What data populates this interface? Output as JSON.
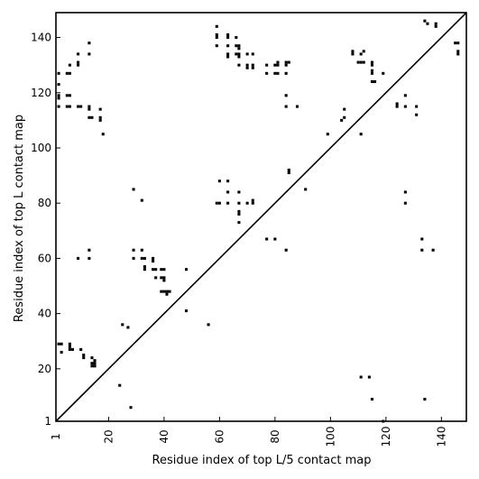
{
  "chart_data": {
    "type": "scatter",
    "xlabel": "Residue index of top L/5 contact map",
    "ylabel": "Residue index of top L contact map",
    "xlim": [
      1,
      149
    ],
    "ylim": [
      1,
      149
    ],
    "x_ticks": [
      1,
      20,
      40,
      60,
      80,
      100,
      120,
      140
    ],
    "y_ticks": [
      1,
      20,
      40,
      60,
      80,
      100,
      120,
      140
    ],
    "diagonal": true,
    "grid": false,
    "marker": "filled square",
    "marker_color": "#000000",
    "series": [
      {
        "points": [
          [
            2,
            127
          ],
          [
            2,
            123
          ],
          [
            2,
            119
          ],
          [
            2,
            118
          ],
          [
            2,
            115
          ],
          [
            5,
            127
          ],
          [
            5,
            119
          ],
          [
            6,
            130
          ],
          [
            6,
            127
          ],
          [
            6,
            119
          ],
          [
            5,
            115
          ],
          [
            6,
            115
          ],
          [
            9,
            134
          ],
          [
            9,
            131
          ],
          [
            9,
            130
          ],
          [
            9,
            115
          ],
          [
            10,
            115
          ],
          [
            13,
            138
          ],
          [
            13,
            134
          ],
          [
            13,
            115
          ],
          [
            13,
            114
          ],
          [
            13,
            111
          ],
          [
            14,
            111
          ],
          [
            17,
            114
          ],
          [
            17,
            111
          ],
          [
            17,
            110
          ],
          [
            18,
            105
          ],
          [
            2,
            29
          ],
          [
            3,
            29
          ],
          [
            3,
            26
          ],
          [
            6,
            29
          ],
          [
            6,
            28
          ],
          [
            6,
            27
          ],
          [
            7,
            27
          ],
          [
            10,
            27
          ],
          [
            11,
            25
          ],
          [
            11,
            24
          ],
          [
            14,
            24
          ],
          [
            14,
            22
          ],
          [
            14,
            21
          ],
          [
            15,
            23
          ],
          [
            15,
            22
          ],
          [
            15,
            21
          ],
          [
            9,
            60
          ],
          [
            13,
            63
          ],
          [
            13,
            60
          ],
          [
            24,
            14
          ],
          [
            25,
            36
          ],
          [
            27,
            35
          ],
          [
            28,
            6
          ],
          [
            29,
            85
          ],
          [
            29,
            63
          ],
          [
            29,
            60
          ],
          [
            32,
            81
          ],
          [
            32,
            63
          ],
          [
            32,
            60
          ],
          [
            33,
            60
          ],
          [
            33,
            57
          ],
          [
            33,
            56
          ],
          [
            36,
            60
          ],
          [
            36,
            59
          ],
          [
            36,
            56
          ],
          [
            37,
            56
          ],
          [
            37,
            53
          ],
          [
            39,
            56
          ],
          [
            40,
            56
          ],
          [
            39,
            53
          ],
          [
            40,
            53
          ],
          [
            40,
            52
          ],
          [
            39,
            48
          ],
          [
            40,
            48
          ],
          [
            41,
            48
          ],
          [
            41,
            47
          ],
          [
            42,
            48
          ],
          [
            48,
            56
          ],
          [
            48,
            41
          ],
          [
            56,
            36
          ],
          [
            59,
            144
          ],
          [
            59,
            141
          ],
          [
            59,
            140
          ],
          [
            59,
            137
          ],
          [
            59,
            80
          ],
          [
            60,
            88
          ],
          [
            60,
            80
          ],
          [
            63,
            141
          ],
          [
            63,
            140
          ],
          [
            63,
            137
          ],
          [
            63,
            134
          ],
          [
            63,
            133
          ],
          [
            63,
            88
          ],
          [
            63,
            84
          ],
          [
            63,
            80
          ],
          [
            66,
            140
          ],
          [
            66,
            137
          ],
          [
            67,
            137
          ],
          [
            67,
            136
          ],
          [
            66,
            134
          ],
          [
            67,
            134
          ],
          [
            67,
            133
          ],
          [
            67,
            130
          ],
          [
            67,
            84
          ],
          [
            67,
            80
          ],
          [
            67,
            77
          ],
          [
            67,
            76
          ],
          [
            67,
            73
          ],
          [
            70,
            134
          ],
          [
            70,
            130
          ],
          [
            70,
            129
          ],
          [
            70,
            80
          ],
          [
            72,
            134
          ],
          [
            72,
            130
          ],
          [
            72,
            129
          ],
          [
            72,
            81
          ],
          [
            72,
            80
          ],
          [
            77,
            130
          ],
          [
            77,
            127
          ],
          [
            77,
            67
          ],
          [
            80,
            130
          ],
          [
            81,
            131
          ],
          [
            81,
            130
          ],
          [
            80,
            127
          ],
          [
            81,
            127
          ],
          [
            80,
            67
          ],
          [
            84,
            131
          ],
          [
            84,
            130
          ],
          [
            85,
            131
          ],
          [
            84,
            127
          ],
          [
            84,
            119
          ],
          [
            84,
            115
          ],
          [
            84,
            63
          ],
          [
            85,
            92
          ],
          [
            85,
            91
          ],
          [
            88,
            115
          ],
          [
            91,
            85
          ],
          [
            99,
            105
          ],
          [
            104,
            110
          ],
          [
            105,
            114
          ],
          [
            105,
            111
          ],
          [
            108,
            135
          ],
          [
            108,
            134
          ],
          [
            110,
            131
          ],
          [
            111,
            134
          ],
          [
            111,
            131
          ],
          [
            112,
            135
          ],
          [
            112,
            131
          ],
          [
            111,
            105
          ],
          [
            111,
            17
          ],
          [
            114,
            17
          ],
          [
            115,
            131
          ],
          [
            115,
            130
          ],
          [
            115,
            128
          ],
          [
            115,
            127
          ],
          [
            115,
            124
          ],
          [
            116,
            124
          ],
          [
            115,
            9
          ],
          [
            119,
            127
          ],
          [
            119,
            1
          ],
          [
            124,
            116
          ],
          [
            124,
            115
          ],
          [
            127,
            119
          ],
          [
            127,
            115
          ],
          [
            127,
            84
          ],
          [
            127,
            80
          ],
          [
            131,
            115
          ],
          [
            131,
            112
          ],
          [
            133,
            67
          ],
          [
            133,
            63
          ],
          [
            134,
            146
          ],
          [
            134,
            9
          ],
          [
            135,
            145
          ],
          [
            137,
            63
          ],
          [
            138,
            145
          ],
          [
            138,
            144
          ],
          [
            145,
            138
          ],
          [
            146,
            138
          ],
          [
            146,
            135
          ],
          [
            146,
            134
          ]
        ]
      }
    ]
  }
}
